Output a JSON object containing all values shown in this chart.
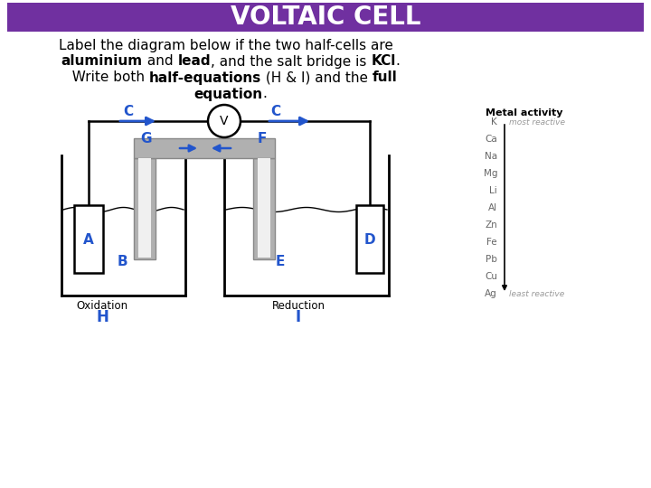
{
  "title": "VOLTAIC CELL",
  "title_bg": "#7030a0",
  "title_color": "#ffffff",
  "blue": "#2255cc",
  "gray": "#b0b0b0",
  "black": "#000000",
  "white": "#ffffff",
  "metal_activity_title": "Metal activity",
  "metal_activity_elements": [
    "K",
    "Ca",
    "Na",
    "Mg",
    "Li",
    "Al",
    "Zn",
    "Fe",
    "Pb",
    "Cu",
    "Ag"
  ],
  "most_reactive": "most reactive",
  "least_reactive": "least reactive",
  "bg_color": "#ffffff"
}
